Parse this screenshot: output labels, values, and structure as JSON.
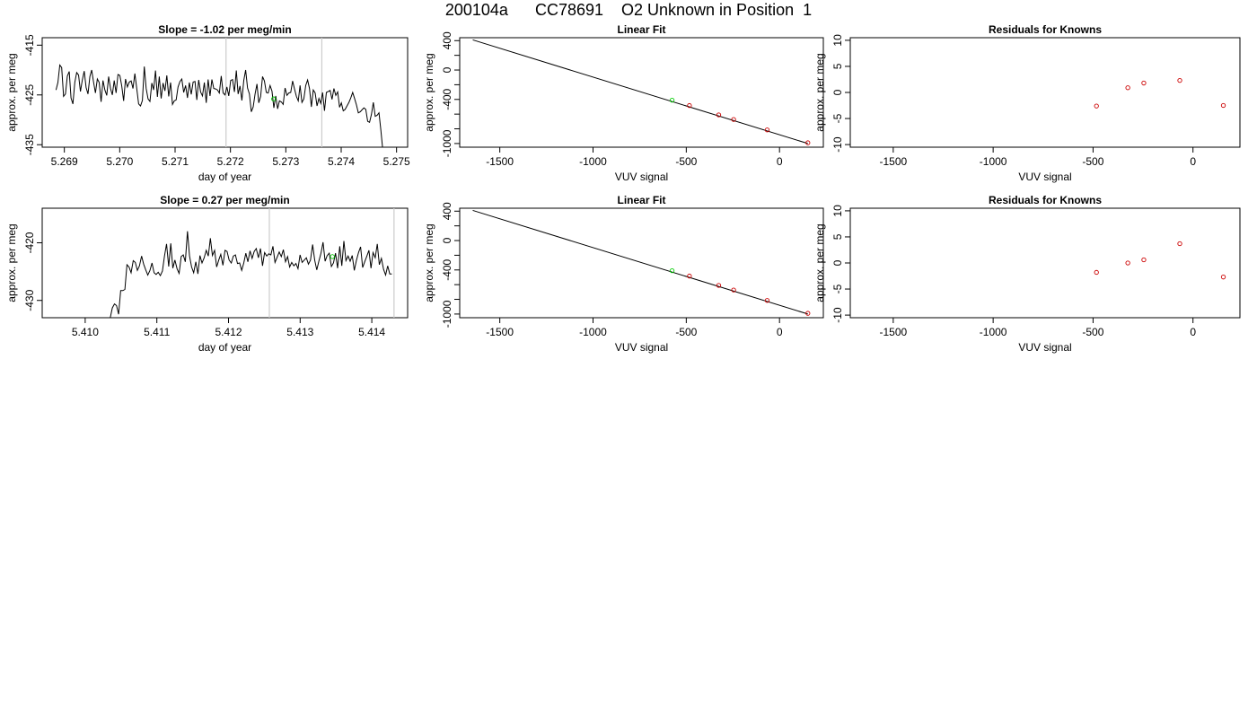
{
  "title": "200104a      CC78691    O2 Unknown in Position  1",
  "colors": {
    "line": "#000000",
    "known_point": "#cc0000",
    "unknown_point": "#00cc00",
    "marker_line": "#cccccc"
  },
  "chart_data": [
    {
      "type": "line",
      "title": "Slope =  -1.02  per meg/min",
      "xlabel": "day of year",
      "ylabel": "approx. per meg",
      "xlim": [
        5.2686,
        5.2752
      ],
      "ylim": [
        -435.5,
        -413.5
      ],
      "xticks": [
        "5.269",
        "5.270",
        "5.271",
        "5.272",
        "5.273",
        "5.274",
        "5.275"
      ],
      "yticks": [
        "-415",
        "-425",
        "-435"
      ],
      "xtick_values": [
        5.269,
        5.27,
        5.271,
        5.272,
        5.273,
        5.274,
        5.275
      ],
      "ytick_values": [
        -415,
        -425,
        -435
      ],
      "vlines": [
        5.27192,
        5.27365
      ],
      "unknown_point": [
        5.27278,
        -425.8
      ],
      "series": [
        {
          "x_start": 5.26885,
          "x_end": 5.27475,
          "values": [
            -424.0,
            -422.5,
            -419.0,
            -419.5,
            -425.3,
            -424.8,
            -421.2,
            -420.3,
            -425.6,
            -426.8,
            -422.5,
            -420.5,
            -421.0,
            -424.3,
            -422.0,
            -420.2,
            -423.5,
            -424.8,
            -421.3,
            -420.0,
            -422.4,
            -424.6,
            -421.8,
            -422.5,
            -426.4,
            -422.1,
            -424.0,
            -425.1,
            -421.3,
            -423.7,
            -425.0,
            -422.1,
            -424.6,
            -420.9,
            -421.1,
            -423.2,
            -426.2,
            -421.8,
            -423.4,
            -422.4,
            -422.2,
            -423.7,
            -420.7,
            -423.7,
            -426.8,
            -427.2,
            -426.1,
            -419.3,
            -423.7,
            -425.8,
            -426.3,
            -422.6,
            -424.0,
            -420.1,
            -425.4,
            -421.3,
            -425.7,
            -422.6,
            -424.2,
            -421.1,
            -425.3,
            -422.5,
            -426.9,
            -426.2,
            -426.0,
            -423.4,
            -422.3,
            -421.8,
            -424.5,
            -423.1,
            -425.6,
            -422.5,
            -424.9,
            -422.4,
            -422.3,
            -426.0,
            -422.0,
            -424.4,
            -425.2,
            -422.5,
            -426.6,
            -421.9,
            -425.2,
            -421.9,
            -423.7,
            -423.8,
            -424.0,
            -424.6,
            -421.2,
            -424.6,
            -425.0,
            -423.4,
            -425.2,
            -422.1,
            -421.9,
            -424.4,
            -420.1,
            -424.8,
            -423.2,
            -426.1,
            -422.1,
            -420.0,
            -423.6,
            -424.8,
            -428.4,
            -427.4,
            -424.8,
            -422.8,
            -426.6,
            -425.3,
            -421.3,
            -422.2,
            -424.5,
            -424.6,
            -423.1,
            -424.2,
            -427.6,
            -425.2,
            -427.8,
            -426.2,
            -426.4,
            -426.9,
            -423.6,
            -425.1,
            -424.6,
            -424.5,
            -422.2,
            -423.8,
            -425.3,
            -426.2,
            -423.1,
            -426.5,
            -425.8,
            -423.1,
            -422.0,
            -423.7,
            -427.4,
            -424.0,
            -424.6,
            -427.2,
            -425.7,
            -426.7,
            -424.5,
            -428.2,
            -424.5,
            -424.3,
            -424.1,
            -425.9,
            -423.7,
            -425.1,
            -424.4,
            -427.5,
            -426.6,
            -428.2,
            -427.9,
            -427.2,
            -426.5,
            -425.6,
            -424.5,
            -425.7,
            -427.0,
            -428.6,
            -428.4,
            -428.0,
            -427.6,
            -427.9,
            -430.3,
            -430.5,
            -428.9,
            -426.5,
            -429.3,
            -429.1,
            -428.6,
            -432.1,
            -436.0
          ]
        }
      ]
    },
    {
      "type": "scatter",
      "title": "Linear Fit",
      "xlabel": "VUV signal",
      "ylabel": "approx. per meg",
      "xlim": [
        -1715,
        235
      ],
      "ylim": [
        -1050,
        440
      ],
      "xticks": [
        "-1500",
        "-1000",
        "-500",
        "0"
      ],
      "yticks": [
        "400",
        "0",
        "-400",
        "-1000"
      ],
      "xtick_values": [
        -1500,
        -1000,
        -500,
        0
      ],
      "ytick_values": [
        400,
        0,
        -400,
        -1000
      ],
      "yminor_ticks": [
        200,
        -200,
        -600,
        -800
      ],
      "fit_line": [
        [
          -1645,
          410
        ],
        [
          152,
          -1000
        ]
      ],
      "known_points": [
        [
          -483,
          -483
        ],
        [
          -326,
          -610
        ],
        [
          -246,
          -673
        ],
        [
          -66,
          -815
        ],
        [
          152,
          -990
        ]
      ],
      "unknown_point": [
        -576,
        -410
      ]
    },
    {
      "type": "scatter",
      "title": "Residuals for Knowns",
      "xlabel": "VUV signal",
      "ylabel": "approx. per meg",
      "xlim": [
        -1715,
        235
      ],
      "ylim": [
        -10.5,
        10.5
      ],
      "xticks": [
        "-1500",
        "-1000",
        "-500",
        "0"
      ],
      "yticks": [
        "10",
        "5",
        "0",
        "-5",
        "-10"
      ],
      "xtick_values": [
        -1500,
        -1000,
        -500,
        0
      ],
      "ytick_values": [
        10,
        5,
        0,
        -5,
        -10
      ],
      "known_points": [
        [
          -483,
          -2.6
        ],
        [
          -326,
          0.9
        ],
        [
          -246,
          1.8
        ],
        [
          -66,
          2.3
        ],
        [
          152,
          -2.5
        ]
      ]
    },
    {
      "type": "line",
      "title": "Slope =  0.27  per meg/min",
      "xlabel": "day of year",
      "ylabel": "approx. per meg",
      "xlim": [
        5.4094,
        5.4145
      ],
      "ylim": [
        -433,
        -414
      ],
      "xticks": [
        "5.410",
        "5.411",
        "5.412",
        "5.413",
        "5.414"
      ],
      "yticks": [
        "-420",
        "-430"
      ],
      "xtick_values": [
        5.41,
        5.411,
        5.412,
        5.413,
        5.414
      ],
      "ytick_values": [
        -420,
        -430
      ],
      "vlines": [
        5.41257,
        5.41431
      ],
      "unknown_point": [
        5.41345,
        -422.4
      ],
      "series": [
        {
          "x_start": 5.41035,
          "x_end": 5.41428,
          "values": [
            -433.0,
            -431.3,
            -430.6,
            -430.9,
            -432.4,
            -428.3,
            -428.3,
            -428.1,
            -423.8,
            -424.2,
            -425.2,
            -423.1,
            -423.4,
            -424.8,
            -424.0,
            -422.3,
            -423.7,
            -424.7,
            -425.6,
            -424.8,
            -423.5,
            -425.2,
            -425.5,
            -425.1,
            -425.7,
            -424.9,
            -422.3,
            -420.2,
            -424.1,
            -420.1,
            -424.4,
            -423.0,
            -424.5,
            -425.3,
            -422.4,
            -422.1,
            -423.3,
            -418.0,
            -422.3,
            -424.2,
            -425.2,
            -423.3,
            -425.4,
            -422.2,
            -423.5,
            -422.6,
            -421.3,
            -422.3,
            -419.2,
            -422.2,
            -421.3,
            -424.2,
            -423.0,
            -422.0,
            -423.9,
            -421.3,
            -421.5,
            -423.0,
            -423.5,
            -422.3,
            -422.1,
            -423.6,
            -423.5,
            -424.8,
            -423.5,
            -421.8,
            -423.3,
            -421.4,
            -422.7,
            -421.5,
            -421.0,
            -422.6,
            -421.0,
            -424.0,
            -421.7,
            -422.3,
            -421.9,
            -422.1,
            -420.6,
            -423.4,
            -422.5,
            -421.6,
            -422.4,
            -421.2,
            -423.3,
            -422.4,
            -424.2,
            -423.4,
            -424.0,
            -423.6,
            -424.5,
            -422.1,
            -423.4,
            -423.0,
            -422.6,
            -423.7,
            -423.0,
            -420.3,
            -423.0,
            -424.7,
            -423.2,
            -421.8,
            -419.9,
            -423.2,
            -422.2,
            -421.8,
            -424.1,
            -423.5,
            -421.8,
            -424.4,
            -420.6,
            -424.0,
            -419.7,
            -423.1,
            -422.3,
            -423.2,
            -422.2,
            -424.8,
            -423.1,
            -421.7,
            -420.7,
            -424.3,
            -423.3,
            -422.3,
            -421.3,
            -424.4,
            -421.7,
            -422.6,
            -420.2,
            -423.8,
            -422.7,
            -424.6,
            -425.6,
            -424.0,
            -425.4,
            -425.4
          ]
        }
      ]
    },
    {
      "type": "scatter",
      "title": "Linear Fit",
      "xlabel": "VUV signal",
      "ylabel": "approx. per meg",
      "xlim": [
        -1715,
        235
      ],
      "ylim": [
        -1050,
        440
      ],
      "xticks": [
        "-1500",
        "-1000",
        "-500",
        "0"
      ],
      "yticks": [
        "400",
        "0",
        "-400",
        "-1000"
      ],
      "xtick_values": [
        -1500,
        -1000,
        -500,
        0
      ],
      "ytick_values": [
        400,
        0,
        -400,
        -1000
      ],
      "yminor_ticks": [
        200,
        -200,
        -600,
        -800
      ],
      "fit_line": [
        [
          -1645,
          410
        ],
        [
          152,
          -1000
        ]
      ],
      "known_points": [
        [
          -483,
          -483
        ],
        [
          -326,
          -610
        ],
        [
          -246,
          -673
        ],
        [
          -66,
          -815
        ],
        [
          152,
          -990
        ]
      ],
      "unknown_point": [
        -576,
        -410
      ]
    },
    {
      "type": "scatter",
      "title": "Residuals for Knowns",
      "xlabel": "VUV signal",
      "ylabel": "approx. per meg",
      "xlim": [
        -1715,
        235
      ],
      "ylim": [
        -10.5,
        10.5
      ],
      "xticks": [
        "-1500",
        "-1000",
        "-500",
        "0"
      ],
      "yticks": [
        "10",
        "5",
        "0",
        "-5",
        "-10"
      ],
      "xtick_values": [
        -1500,
        -1000,
        -500,
        0
      ],
      "ytick_values": [
        10,
        5,
        0,
        -5,
        -10
      ],
      "known_points": [
        [
          -483,
          -1.8
        ],
        [
          -326,
          0.0
        ],
        [
          -246,
          0.6
        ],
        [
          -66,
          3.7
        ],
        [
          152,
          -2.7
        ]
      ]
    }
  ]
}
